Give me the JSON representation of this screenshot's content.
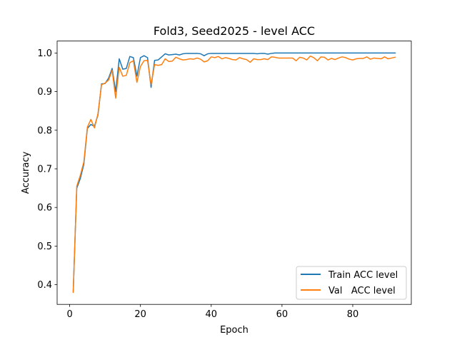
{
  "chart_data": {
    "type": "line",
    "title": "Fold3, Seed2025 - level ACC",
    "xlabel": "Epoch",
    "ylabel": "Accuracy",
    "xlim": [
      -3.55,
      96.55
    ],
    "ylim": [
      0.349,
      1.031
    ],
    "xticks": [
      0,
      20,
      40,
      60,
      80
    ],
    "xtick_labels": [
      "0",
      "20",
      "40",
      "60",
      "80"
    ],
    "yticks": [
      0.4,
      0.5,
      0.6,
      0.7,
      0.8,
      0.9,
      1.0
    ],
    "ytick_labels": [
      "0.4",
      "0.5",
      "0.6",
      "0.7",
      "0.8",
      "0.9",
      "1.0"
    ],
    "grid": false,
    "legend_position": "lower-right",
    "x": [
      1,
      2,
      3,
      4,
      5,
      6,
      7,
      8,
      9,
      10,
      11,
      12,
      13,
      14,
      15,
      16,
      17,
      18,
      19,
      20,
      21,
      22,
      23,
      24,
      25,
      26,
      27,
      28,
      29,
      30,
      31,
      32,
      33,
      34,
      35,
      36,
      37,
      38,
      39,
      40,
      41,
      42,
      43,
      44,
      45,
      46,
      47,
      48,
      49,
      50,
      51,
      52,
      53,
      54,
      55,
      56,
      57,
      58,
      59,
      60,
      61,
      62,
      63,
      64,
      65,
      66,
      67,
      68,
      69,
      70,
      71,
      72,
      73,
      74,
      75,
      76,
      77,
      78,
      79,
      80,
      81,
      82,
      83,
      84,
      85,
      86,
      87,
      88,
      89,
      90,
      91,
      92
    ],
    "series": [
      {
        "name": "Train ACC level",
        "color": "#1f77b4",
        "values": [
          0.383,
          0.65,
          0.675,
          0.712,
          0.805,
          0.815,
          0.81,
          0.84,
          0.92,
          0.921,
          0.935,
          0.96,
          0.9,
          0.985,
          0.958,
          0.96,
          0.991,
          0.988,
          0.94,
          0.988,
          0.993,
          0.988,
          0.911,
          0.981,
          0.982,
          0.99,
          0.998,
          0.995,
          0.996,
          0.997,
          0.995,
          0.998,
          0.999,
          0.999,
          0.999,
          0.999,
          0.998,
          0.993,
          0.998,
          0.999,
          0.999,
          0.999,
          0.999,
          0.999,
          0.999,
          0.999,
          0.999,
          0.999,
          0.999,
          0.999,
          0.999,
          0.999,
          0.998,
          0.999,
          0.999,
          0.997,
          0.999,
          1.0,
          1.0,
          1.0,
          1.0,
          1.0,
          1.0,
          1.0,
          1.0,
          1.0,
          1.0,
          1.0,
          1.0,
          1.0,
          1.0,
          1.0,
          1.0,
          1.0,
          1.0,
          1.0,
          1.0,
          1.0,
          1.0,
          1.0,
          1.0,
          1.0,
          1.0,
          1.0,
          1.0,
          1.0,
          1.0,
          1.0,
          1.0,
          1.0,
          1.0,
          1.0
        ]
      },
      {
        "name": "Val   ACC level",
        "color": "#ff7f0e",
        "values": [
          0.38,
          0.655,
          0.683,
          0.718,
          0.808,
          0.828,
          0.806,
          0.843,
          0.918,
          0.922,
          0.93,
          0.955,
          0.883,
          0.963,
          0.94,
          0.942,
          0.975,
          0.98,
          0.924,
          0.965,
          0.98,
          0.981,
          0.918,
          0.97,
          0.968,
          0.97,
          0.985,
          0.978,
          0.979,
          0.989,
          0.985,
          0.982,
          0.983,
          0.985,
          0.984,
          0.987,
          0.984,
          0.977,
          0.98,
          0.99,
          0.988,
          0.991,
          0.985,
          0.988,
          0.986,
          0.983,
          0.982,
          0.988,
          0.985,
          0.983,
          0.976,
          0.985,
          0.983,
          0.983,
          0.985,
          0.983,
          0.99,
          0.989,
          0.987,
          0.987,
          0.987,
          0.987,
          0.987,
          0.98,
          0.989,
          0.987,
          0.982,
          0.992,
          0.988,
          0.98,
          0.99,
          0.989,
          0.982,
          0.986,
          0.983,
          0.987,
          0.99,
          0.988,
          0.984,
          0.982,
          0.985,
          0.986,
          0.986,
          0.99,
          0.984,
          0.987,
          0.986,
          0.985,
          0.99,
          0.985,
          0.987,
          0.989
        ]
      }
    ]
  }
}
